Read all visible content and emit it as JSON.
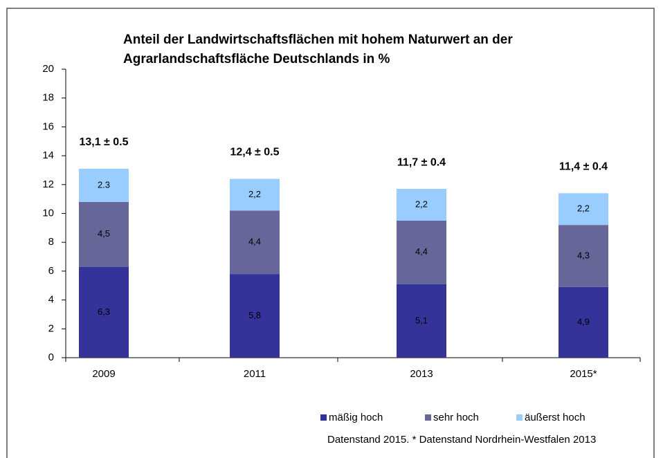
{
  "chart_data": {
    "type": "stacked_bar",
    "title": [
      "Anteil der Landwirtschaftsflächen mit hohem Naturwert  an der",
      "Agrarlandschaftsfläche Deutschlands in %"
    ],
    "categories": [
      "2009",
      "2011",
      "2013",
      "2015*"
    ],
    "series": [
      {
        "name": "mäßig hoch",
        "color": "#333399",
        "values": [
          6.3,
          5.8,
          5.1,
          4.9
        ],
        "value_labels": [
          "6,3",
          "5,8",
          "5,1",
          "4,9"
        ]
      },
      {
        "name": "sehr hoch",
        "color": "#666699",
        "values": [
          4.5,
          4.4,
          4.4,
          4.3
        ],
        "value_labels": [
          "4,5",
          "4,4",
          "4,4",
          "4,3"
        ]
      },
      {
        "name": "äußerst hoch",
        "color": "#99ccff",
        "values": [
          2.3,
          2.2,
          2.2,
          2.2
        ],
        "value_labels": [
          "2.3",
          "2,2",
          "2,2",
          "2,2"
        ]
      }
    ],
    "annotations": [
      "13,1 ± 0.5",
      "12,4 ± 0.5",
      "11,7 ± 0.4",
      "11,4 ± 0.4"
    ],
    "ylim": [
      0,
      20
    ],
    "yticks": [
      0,
      2,
      4,
      6,
      8,
      10,
      12,
      14,
      16,
      18,
      20
    ],
    "grid": false,
    "legend": "bottom",
    "note": "Datenstand 2015. * Datenstand Nordrhein-Westfalen 2013"
  }
}
